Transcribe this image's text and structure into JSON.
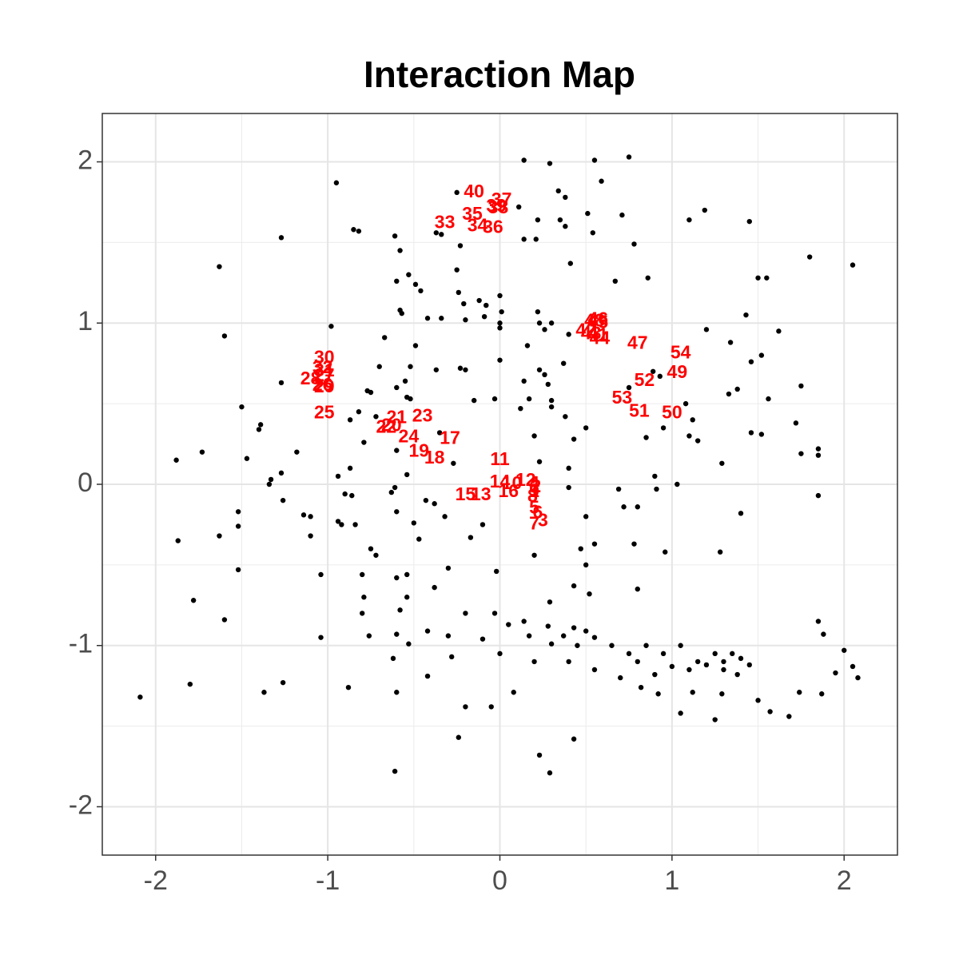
{
  "chart_data": {
    "type": "scatter",
    "title": "Interaction Map",
    "xlim": [
      -2.31,
      2.31
    ],
    "ylim": [
      -2.3,
      2.3
    ],
    "xticks": [
      -2,
      -1,
      0,
      1,
      2
    ],
    "yticks": [
      -2,
      -1,
      0,
      1,
      2
    ],
    "grid": true,
    "point_color": "#000000",
    "label_color": "#ff0000",
    "points": [
      [
        0.14,
        2.01
      ],
      [
        0.29,
        1.99
      ],
      [
        0.55,
        2.01
      ],
      [
        0.75,
        2.03
      ],
      [
        -0.95,
        1.87
      ],
      [
        0.59,
        1.88
      ],
      [
        0.34,
        1.82
      ],
      [
        0.38,
        1.78
      ],
      [
        -0.25,
        1.81
      ],
      [
        0.11,
        1.72
      ],
      [
        0.22,
        1.64
      ],
      [
        0.35,
        1.64
      ],
      [
        0.38,
        1.6
      ],
      [
        0.51,
        1.68
      ],
      [
        0.71,
        1.67
      ],
      [
        1.1,
        1.64
      ],
      [
        1.19,
        1.7
      ],
      [
        1.45,
        1.63
      ],
      [
        -1.27,
        1.53
      ],
      [
        -0.85,
        1.58
      ],
      [
        -0.82,
        1.57
      ],
      [
        -0.37,
        1.56
      ],
      [
        -0.34,
        1.55
      ],
      [
        0.14,
        1.52
      ],
      [
        0.21,
        1.52
      ],
      [
        0.54,
        1.56
      ],
      [
        0.78,
        1.49
      ],
      [
        -0.61,
        1.54
      ],
      [
        -0.58,
        1.45
      ],
      [
        -0.23,
        1.48
      ],
      [
        1.8,
        1.41
      ],
      [
        2.05,
        1.36
      ],
      [
        -1.63,
        1.35
      ],
      [
        0.41,
        1.37
      ],
      [
        -0.53,
        1.3
      ],
      [
        -0.6,
        1.26
      ],
      [
        -0.25,
        1.33
      ],
      [
        0.67,
        1.26
      ],
      [
        0.86,
        1.28
      ],
      [
        1.5,
        1.28
      ],
      [
        1.55,
        1.28
      ],
      [
        -0.49,
        1.24
      ],
      [
        -0.46,
        1.2
      ],
      [
        -0.24,
        1.19
      ],
      [
        0.0,
        1.17
      ],
      [
        -0.21,
        1.12
      ],
      [
        -0.12,
        1.14
      ],
      [
        -0.08,
        1.11
      ],
      [
        0.01,
        1.07
      ],
      [
        -0.58,
        1.08
      ],
      [
        -0.57,
        1.06
      ],
      [
        -0.42,
        1.03
      ],
      [
        -0.34,
        1.03
      ],
      [
        -0.2,
        1.02
      ],
      [
        -0.09,
        1.04
      ],
      [
        0.0,
        1.0
      ],
      [
        0.22,
        1.07
      ],
      [
        0.23,
        1.0
      ],
      [
        0.3,
        1.0
      ],
      [
        1.43,
        1.05
      ],
      [
        1.2,
        0.96
      ],
      [
        1.62,
        0.95
      ],
      [
        -1.6,
        0.92
      ],
      [
        -0.98,
        0.98
      ],
      [
        -0.67,
        0.91
      ],
      [
        0.0,
        0.97
      ],
      [
        0.26,
        0.96
      ],
      [
        0.4,
        0.93
      ],
      [
        -0.49,
        0.86
      ],
      [
        0.16,
        0.86
      ],
      [
        1.34,
        0.88
      ],
      [
        1.46,
        0.76
      ],
      [
        1.52,
        0.8
      ],
      [
        -0.52,
        0.73
      ],
      [
        -0.7,
        0.73
      ],
      [
        -0.23,
        0.72
      ],
      [
        -0.2,
        0.71
      ],
      [
        -0.37,
        0.71
      ],
      [
        0.23,
        0.71
      ],
      [
        0.37,
        0.75
      ],
      [
        0.0,
        0.77
      ],
      [
        0.26,
        0.68
      ],
      [
        0.89,
        0.7
      ],
      [
        0.93,
        0.67
      ],
      [
        -1.27,
        0.63
      ],
      [
        -0.55,
        0.64
      ],
      [
        -0.6,
        0.6
      ],
      [
        0.14,
        0.64
      ],
      [
        0.28,
        0.62
      ],
      [
        0.75,
        0.6
      ],
      [
        1.38,
        0.59
      ],
      [
        1.75,
        0.61
      ],
      [
        -0.77,
        0.58
      ],
      [
        -0.75,
        0.57
      ],
      [
        -0.54,
        0.54
      ],
      [
        -0.52,
        0.53
      ],
      [
        -0.15,
        0.52
      ],
      [
        -0.03,
        0.53
      ],
      [
        0.17,
        0.53
      ],
      [
        0.3,
        0.52
      ],
      [
        1.33,
        0.56
      ],
      [
        1.56,
        0.53
      ],
      [
        -1.5,
        0.48
      ],
      [
        -0.82,
        0.45
      ],
      [
        0.12,
        0.47
      ],
      [
        0.3,
        0.48
      ],
      [
        1.08,
        0.5
      ],
      [
        -0.72,
        0.42
      ],
      [
        0.38,
        0.42
      ],
      [
        1.12,
        0.4
      ],
      [
        -1.39,
        0.37
      ],
      [
        -1.4,
        0.34
      ],
      [
        -0.87,
        0.4
      ],
      [
        0.5,
        0.35
      ],
      [
        0.95,
        0.35
      ],
      [
        1.1,
        0.3
      ],
      [
        1.46,
        0.32
      ],
      [
        1.52,
        0.31
      ],
      [
        1.72,
        0.38
      ],
      [
        -0.35,
        0.32
      ],
      [
        0.2,
        0.3
      ],
      [
        0.43,
        0.28
      ],
      [
        -0.79,
        0.26
      ],
      [
        0.85,
        0.29
      ],
      [
        1.15,
        0.27
      ],
      [
        -1.73,
        0.2
      ],
      [
        -1.88,
        0.15
      ],
      [
        -1.18,
        0.2
      ],
      [
        1.85,
        0.22
      ],
      [
        1.75,
        0.19
      ],
      [
        1.85,
        0.18
      ],
      [
        1.29,
        0.13
      ],
      [
        -0.6,
        0.21
      ],
      [
        -1.47,
        0.16
      ],
      [
        -0.87,
        0.1
      ],
      [
        -1.27,
        0.07
      ],
      [
        -1.33,
        0.03
      ],
      [
        -1.34,
        0.0
      ],
      [
        -0.94,
        0.05
      ],
      [
        -0.54,
        0.06
      ],
      [
        -0.27,
        0.13
      ],
      [
        0.23,
        0.14
      ],
      [
        0.4,
        0.1
      ],
      [
        0.9,
        0.05
      ],
      [
        1.03,
        0.0
      ],
      [
        -0.9,
        -0.06
      ],
      [
        -0.86,
        -0.07
      ],
      [
        -0.61,
        -0.02
      ],
      [
        -0.63,
        -0.05
      ],
      [
        -0.43,
        -0.1
      ],
      [
        -0.38,
        -0.12
      ],
      [
        0.4,
        -0.02
      ],
      [
        0.69,
        -0.03
      ],
      [
        0.91,
        -0.03
      ],
      [
        1.85,
        -0.07
      ],
      [
        -1.26,
        -0.1
      ],
      [
        -1.14,
        -0.19
      ],
      [
        -1.1,
        -0.2
      ],
      [
        -0.94,
        -0.23
      ],
      [
        -0.92,
        -0.25
      ],
      [
        -0.84,
        -0.25
      ],
      [
        -0.6,
        -0.17
      ],
      [
        -0.5,
        -0.24
      ],
      [
        -0.32,
        -0.2
      ],
      [
        -0.1,
        -0.25
      ],
      [
        0.5,
        -0.2
      ],
      [
        0.72,
        -0.14
      ],
      [
        0.8,
        -0.14
      ],
      [
        1.4,
        -0.18
      ],
      [
        -1.52,
        -0.17
      ],
      [
        -1.52,
        -0.26
      ],
      [
        -1.63,
        -0.32
      ],
      [
        -1.87,
        -0.35
      ],
      [
        -1.1,
        -0.32
      ],
      [
        -0.75,
        -0.4
      ],
      [
        -0.72,
        -0.44
      ],
      [
        -0.47,
        -0.34
      ],
      [
        -0.17,
        -0.33
      ],
      [
        0.2,
        -0.44
      ],
      [
        0.47,
        -0.4
      ],
      [
        0.55,
        -0.37
      ],
      [
        0.78,
        -0.37
      ],
      [
        0.96,
        -0.42
      ],
      [
        1.28,
        -0.42
      ],
      [
        -1.52,
        -0.53
      ],
      [
        -1.04,
        -0.56
      ],
      [
        -0.8,
        -0.56
      ],
      [
        -0.6,
        -0.58
      ],
      [
        -0.54,
        -0.56
      ],
      [
        -0.3,
        -0.52
      ],
      [
        -0.02,
        -0.54
      ],
      [
        0.5,
        -0.5
      ],
      [
        0.43,
        -0.63
      ],
      [
        -1.6,
        -0.84
      ],
      [
        -1.78,
        -0.72
      ],
      [
        -0.79,
        -0.7
      ],
      [
        -0.54,
        -0.7
      ],
      [
        -0.38,
        -0.64
      ],
      [
        0.29,
        -0.73
      ],
      [
        0.52,
        -0.68
      ],
      [
        0.8,
        -0.65
      ],
      [
        -0.8,
        -0.8
      ],
      [
        -0.58,
        -0.78
      ],
      [
        -0.2,
        -0.8
      ],
      [
        -0.03,
        -0.8
      ],
      [
        0.05,
        -0.87
      ],
      [
        0.14,
        -0.85
      ],
      [
        0.28,
        -0.88
      ],
      [
        0.37,
        -0.94
      ],
      [
        0.43,
        -0.89
      ],
      [
        0.5,
        -0.91
      ],
      [
        -1.04,
        -0.95
      ],
      [
        -0.76,
        -0.94
      ],
      [
        -0.6,
        -0.93
      ],
      [
        -0.42,
        -0.91
      ],
      [
        -0.3,
        -0.94
      ],
      [
        -0.1,
        -0.96
      ],
      [
        0.17,
        -0.94
      ],
      [
        0.3,
        -0.99
      ],
      [
        0.45,
        -1.0
      ],
      [
        0.55,
        -0.95
      ],
      [
        0.65,
        -1.0
      ],
      [
        0.75,
        -1.05
      ],
      [
        0.85,
        -1.0
      ],
      [
        0.95,
        -1.05
      ],
      [
        1.05,
        -1.0
      ],
      [
        1.15,
        -1.1
      ],
      [
        1.25,
        -1.05
      ],
      [
        1.3,
        -1.1
      ],
      [
        1.35,
        -1.05
      ],
      [
        1.4,
        -1.08
      ],
      [
        1.45,
        -1.12
      ],
      [
        -0.53,
        -0.99
      ],
      [
        -0.62,
        -1.08
      ],
      [
        -0.28,
        -1.07
      ],
      [
        0.0,
        -1.05
      ],
      [
        0.2,
        -1.1
      ],
      [
        0.4,
        -1.1
      ],
      [
        0.55,
        -1.15
      ],
      [
        0.7,
        -1.2
      ],
      [
        0.8,
        -1.1
      ],
      [
        0.9,
        -1.18
      ],
      [
        1.0,
        -1.13
      ],
      [
        1.1,
        -1.15
      ],
      [
        1.2,
        -1.12
      ],
      [
        1.3,
        -1.15
      ],
      [
        1.38,
        -1.18
      ],
      [
        1.95,
        -1.17
      ],
      [
        2.0,
        -1.03
      ],
      [
        2.05,
        -1.13
      ],
      [
        2.08,
        -1.2
      ],
      [
        1.85,
        -0.85
      ],
      [
        1.88,
        -0.93
      ],
      [
        -2.09,
        -1.32
      ],
      [
        -1.8,
        -1.24
      ],
      [
        -1.37,
        -1.29
      ],
      [
        -1.26,
        -1.23
      ],
      [
        -0.88,
        -1.26
      ],
      [
        -0.6,
        -1.29
      ],
      [
        -0.42,
        -1.19
      ],
      [
        0.08,
        -1.29
      ],
      [
        0.82,
        -1.26
      ],
      [
        0.92,
        -1.3
      ],
      [
        1.05,
        -1.42
      ],
      [
        1.12,
        -1.29
      ],
      [
        1.25,
        -1.46
      ],
      [
        1.29,
        -1.3
      ],
      [
        1.5,
        -1.34
      ],
      [
        1.57,
        -1.41
      ],
      [
        1.68,
        -1.44
      ],
      [
        1.74,
        -1.29
      ],
      [
        1.87,
        -1.3
      ],
      [
        -0.2,
        -1.38
      ],
      [
        -0.05,
        -1.38
      ],
      [
        -0.24,
        -1.57
      ],
      [
        0.43,
        -1.58
      ],
      [
        0.23,
        -1.68
      ],
      [
        -0.61,
        -1.78
      ],
      [
        0.29,
        -1.79
      ]
    ],
    "labels": [
      {
        "label": "1",
        "x": 0.2,
        "y": -0.05
      },
      {
        "label": "2",
        "x": 0.21,
        "y": -0.02
      },
      {
        "label": "3",
        "x": 0.25,
        "y": -0.23
      },
      {
        "label": "4",
        "x": 0.2,
        "y": 0.0
      },
      {
        "label": "5",
        "x": 0.2,
        "y": -0.15
      },
      {
        "label": "6",
        "x": 0.22,
        "y": -0.18
      },
      {
        "label": "7",
        "x": 0.2,
        "y": -0.25
      },
      {
        "label": "8",
        "x": 0.19,
        "y": -0.08
      },
      {
        "label": "9",
        "x": 0.2,
        "y": -0.05
      },
      {
        "label": "10",
        "x": 0.07,
        "y": 0.0
      },
      {
        "label": "11",
        "x": 0.0,
        "y": 0.15
      },
      {
        "label": "12",
        "x": 0.15,
        "y": 0.02
      },
      {
        "label": "13",
        "x": -0.11,
        "y": -0.07
      },
      {
        "label": "14",
        "x": 0.0,
        "y": 0.01
      },
      {
        "label": "15",
        "x": -0.2,
        "y": -0.07
      },
      {
        "label": "16",
        "x": 0.05,
        "y": -0.05
      },
      {
        "label": "17",
        "x": -0.29,
        "y": 0.28
      },
      {
        "label": "18",
        "x": -0.38,
        "y": 0.16
      },
      {
        "label": "19",
        "x": -0.47,
        "y": 0.2
      },
      {
        "label": "20",
        "x": -0.63,
        "y": 0.36
      },
      {
        "label": "21",
        "x": -0.6,
        "y": 0.41
      },
      {
        "label": "22",
        "x": -0.66,
        "y": 0.35
      },
      {
        "label": "23",
        "x": -0.45,
        "y": 0.42
      },
      {
        "label": "24",
        "x": -0.53,
        "y": 0.29
      },
      {
        "label": "25",
        "x": -1.02,
        "y": 0.44
      },
      {
        "label": "26",
        "x": -1.03,
        "y": 0.61
      },
      {
        "label": "27",
        "x": -1.02,
        "y": 0.67
      },
      {
        "label": "28",
        "x": -1.1,
        "y": 0.65
      },
      {
        "label": "29",
        "x": -1.02,
        "y": 0.6
      },
      {
        "label": "30",
        "x": -1.02,
        "y": 0.78
      },
      {
        "label": "31",
        "x": -1.02,
        "y": 0.7
      },
      {
        "label": "32",
        "x": -1.03,
        "y": 0.72
      },
      {
        "label": "33",
        "x": -0.32,
        "y": 1.62
      },
      {
        "label": "34",
        "x": -0.13,
        "y": 1.6
      },
      {
        "label": "35",
        "x": -0.16,
        "y": 1.67
      },
      {
        "label": "36",
        "x": -0.04,
        "y": 1.59
      },
      {
        "label": "37",
        "x": 0.01,
        "y": 1.76
      },
      {
        "label": "38",
        "x": -0.01,
        "y": 1.71
      },
      {
        "label": "39",
        "x": -0.02,
        "y": 1.72
      },
      {
        "label": "40",
        "x": -0.15,
        "y": 1.81
      },
      {
        "label": "41",
        "x": 0.57,
        "y": 0.92
      },
      {
        "label": "42",
        "x": 0.5,
        "y": 0.95
      },
      {
        "label": "43",
        "x": 0.53,
        "y": 0.93
      },
      {
        "label": "44",
        "x": 0.58,
        "y": 0.9
      },
      {
        "label": "45",
        "x": 0.57,
        "y": 1.0
      },
      {
        "label": "46",
        "x": 0.57,
        "y": 1.02
      },
      {
        "label": "47",
        "x": 0.8,
        "y": 0.87
      },
      {
        "label": "48",
        "x": 0.55,
        "y": 1.01
      },
      {
        "label": "49",
        "x": 1.03,
        "y": 0.69
      },
      {
        "label": "50",
        "x": 1.0,
        "y": 0.44
      },
      {
        "label": "51",
        "x": 0.81,
        "y": 0.45
      },
      {
        "label": "52",
        "x": 0.84,
        "y": 0.64
      },
      {
        "label": "53",
        "x": 0.71,
        "y": 0.53
      },
      {
        "label": "54",
        "x": 1.05,
        "y": 0.81
      }
    ]
  }
}
